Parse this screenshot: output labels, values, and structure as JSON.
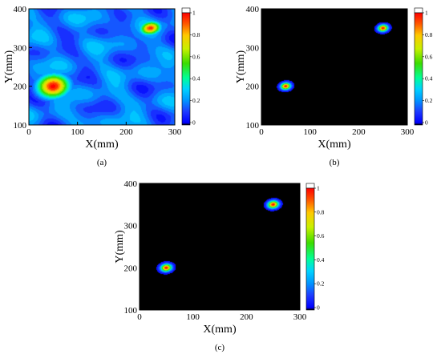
{
  "chart_data": [
    {
      "type": "heatmap",
      "panel": "(a)",
      "xlabel": "X(mm)",
      "ylabel": "Y(mm)",
      "xlim": [
        0,
        300
      ],
      "ylim": [
        100,
        400
      ],
      "xticks": [
        "0",
        "100",
        "200",
        "300"
      ],
      "yticks": [
        "100",
        "200",
        "300",
        "400"
      ],
      "colorbar": {
        "range": [
          0,
          1
        ],
        "ticks": [
          "0",
          "0.2",
          "0.4",
          "0.6",
          "0.8",
          "1"
        ]
      },
      "peaks": [
        {
          "x": 50,
          "y": 200,
          "value": 1.0
        },
        {
          "x": 250,
          "y": 350,
          "value": 0.95
        }
      ],
      "background": "noisy"
    },
    {
      "type": "heatmap",
      "panel": "(b)",
      "xlabel": "X(mm)",
      "ylabel": "Y(mm)",
      "xlim": [
        0,
        300
      ],
      "ylim": [
        100,
        400
      ],
      "xticks": [
        "0",
        "100",
        "200",
        "300"
      ],
      "yticks": [
        "100",
        "200",
        "300",
        "400"
      ],
      "colorbar": {
        "range": [
          0,
          1
        ],
        "ticks": [
          "0",
          "0.2",
          "0.4",
          "0.6",
          "0.8",
          "1"
        ]
      },
      "peaks": [
        {
          "x": 50,
          "y": 200,
          "value": 1.0
        },
        {
          "x": 250,
          "y": 350,
          "value": 1.0
        }
      ],
      "background": "flat"
    },
    {
      "type": "heatmap",
      "panel": "(c)",
      "xlabel": "X(mm)",
      "ylabel": "Y(mm)",
      "xlim": [
        0,
        300
      ],
      "ylim": [
        100,
        400
      ],
      "xticks": [
        "0",
        "100",
        "200",
        "300"
      ],
      "yticks": [
        "100",
        "200",
        "300",
        "400"
      ],
      "colorbar": {
        "range": [
          0,
          1
        ],
        "ticks": [
          "0",
          "0.2",
          "0.4",
          "0.6",
          "0.8",
          "1"
        ]
      },
      "peaks": [
        {
          "x": 50,
          "y": 200,
          "value": 1.0
        },
        {
          "x": 250,
          "y": 350,
          "value": 1.0
        }
      ],
      "background": "flat"
    }
  ],
  "colormap": {
    "stops": [
      {
        "v": 0.0,
        "color": "#000000"
      },
      {
        "v": 0.02,
        "color": "#0000ff"
      },
      {
        "v": 0.12,
        "color": "#1e3cff"
      },
      {
        "v": 0.22,
        "color": "#0096ff"
      },
      {
        "v": 0.32,
        "color": "#00d2ff"
      },
      {
        "v": 0.42,
        "color": "#00ff96"
      },
      {
        "v": 0.55,
        "color": "#3cdc00"
      },
      {
        "v": 0.68,
        "color": "#c8f000"
      },
      {
        "v": 0.8,
        "color": "#ffc800"
      },
      {
        "v": 0.9,
        "color": "#ff5a00"
      },
      {
        "v": 1.0,
        "color": "#ff0000"
      }
    ],
    "top_color": "#ffffff"
  }
}
